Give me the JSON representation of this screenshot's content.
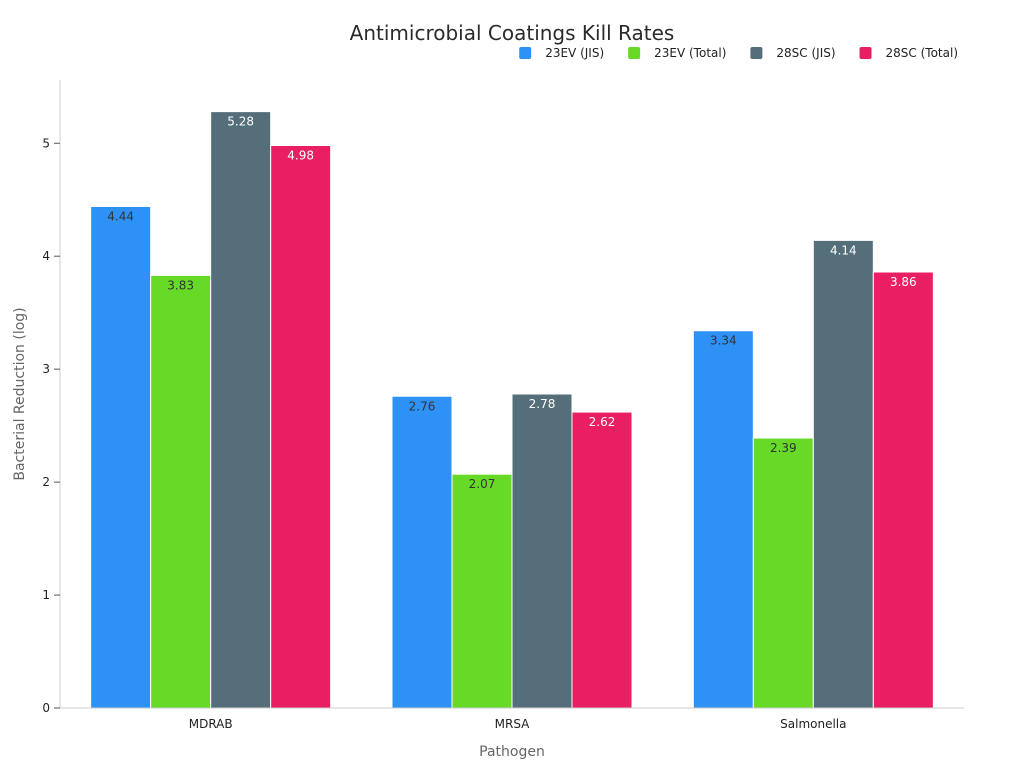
{
  "chart_data": {
    "type": "bar",
    "title": "Antimicrobial Coatings Kill Rates",
    "xlabel": "Pathogen",
    "ylabel": "Bacterial Reduction (log)",
    "categories": [
      "MDRAB",
      "MRSA",
      "Salmonella"
    ],
    "ylim": [
      0,
      5.56
    ],
    "yticks": [
      0,
      1,
      2,
      3,
      4,
      5
    ],
    "grid": false,
    "legend_position": "top-right",
    "series": [
      {
        "name": "23EV (JIS)",
        "color": "#2e91f6",
        "label_color": "#333333",
        "values": [
          4.44,
          2.76,
          3.34
        ]
      },
      {
        "name": "23EV (Total)",
        "color": "#66da26",
        "label_color": "#333333",
        "values": [
          3.83,
          2.07,
          2.39
        ]
      },
      {
        "name": "28SC (JIS)",
        "color": "#546e7a",
        "label_color": "#ffffff",
        "values": [
          5.28,
          2.78,
          4.14
        ]
      },
      {
        "name": "28SC (Total)",
        "color": "#e91e63",
        "label_color": "#ffffff",
        "values": [
          4.98,
          2.62,
          3.86
        ]
      }
    ]
  }
}
